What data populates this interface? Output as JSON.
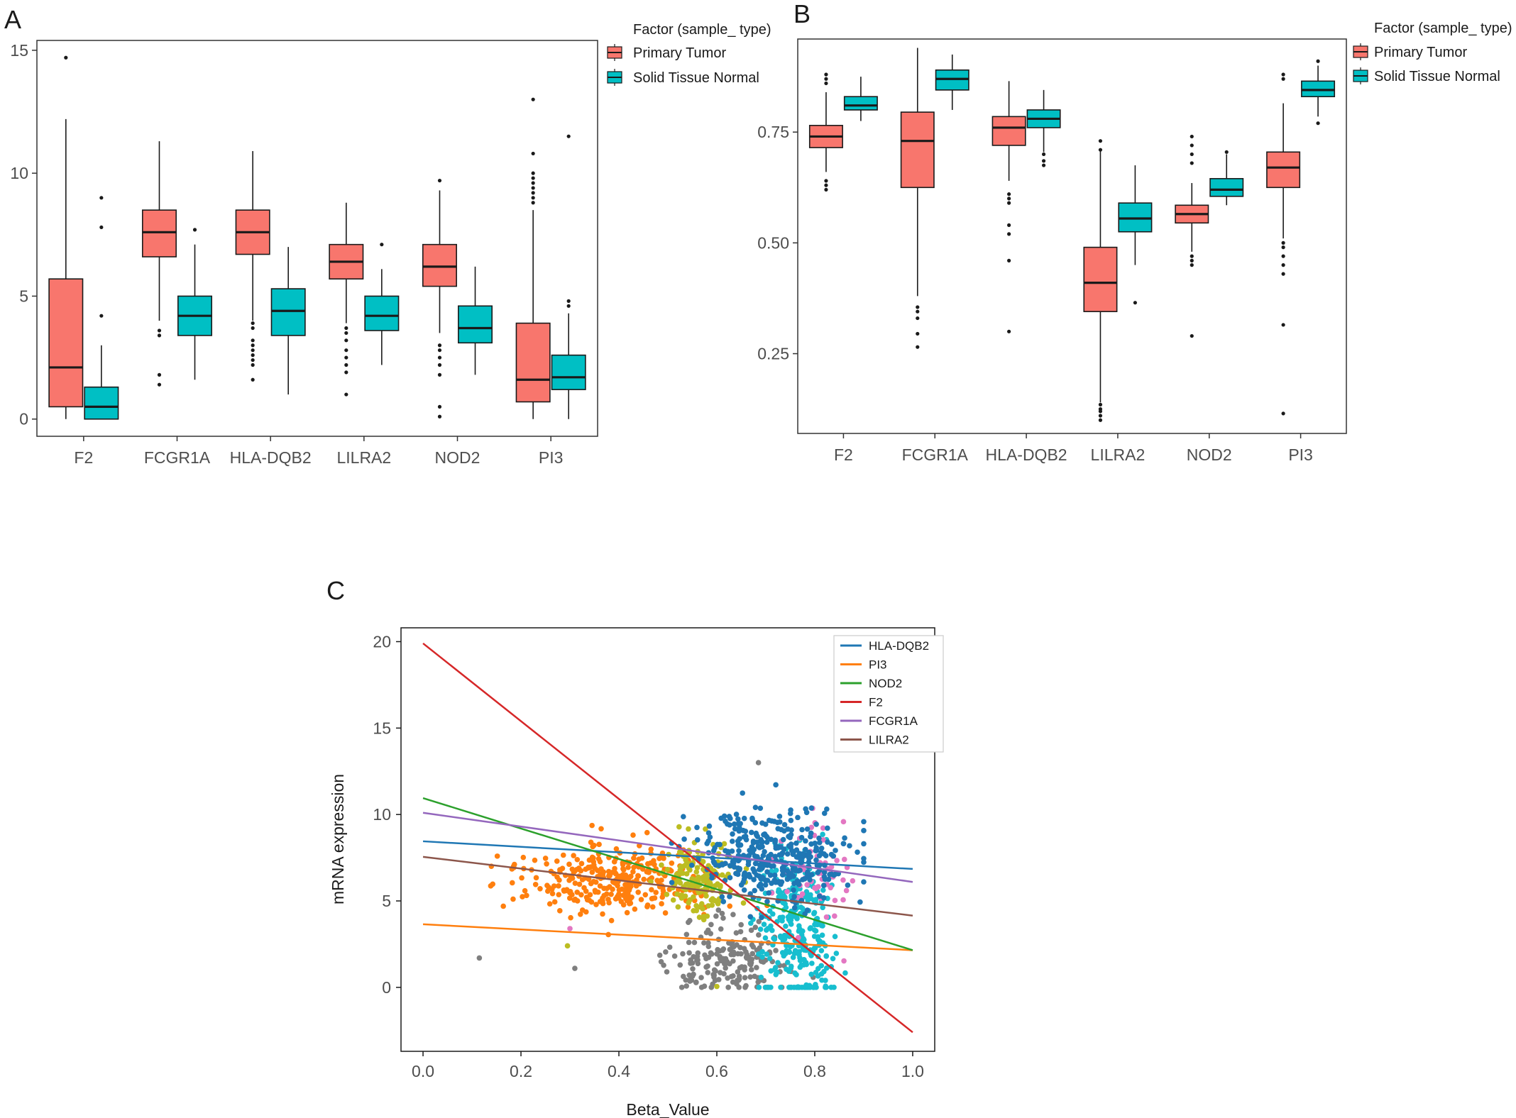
{
  "colors": {
    "primary_tumor": "#F8766D",
    "solid_tissue_normal": "#00BFC4",
    "box_stroke": "#1a1a1a",
    "panel_border": "#333333",
    "fit_lines": {
      "HLA-DQB2": "#1f77b4",
      "PI3": "#ff7f0e",
      "NOD2": "#2ca02c",
      "F2": "#d62728",
      "FCGR1A": "#9467bd",
      "LILRA2": "#8c564b"
    },
    "scatter_groups": [
      "#1f77b4",
      "#ff7f0e",
      "#bcbd22",
      "#7f7f7f",
      "#17becf",
      "#e377c2"
    ]
  },
  "panels": {
    "a": {
      "letter": "A"
    },
    "b": {
      "letter": "B"
    },
    "c": {
      "letter": "C"
    }
  },
  "legend_ab": {
    "title": "Factor (sample_ type)",
    "items": [
      "Primary Tumor",
      "Solid Tissue Normal"
    ]
  },
  "chart_data": [
    {
      "panel": "A",
      "type": "box",
      "categories": [
        "F2",
        "FCGR1A",
        "HLA-DQB2",
        "LILRA2",
        "NOD2",
        "PI3"
      ],
      "legend_title": "Factor (sample_ type)",
      "series": [
        {
          "name": "Primary Tumor",
          "boxes": [
            {
              "whisker_low": 0.0,
              "q1": 0.5,
              "median": 2.1,
              "q3": 5.7,
              "whisker_high": 12.2,
              "outliers": [
                14.7
              ]
            },
            {
              "whisker_low": 4.0,
              "q1": 6.6,
              "median": 7.6,
              "q3": 8.5,
              "whisker_high": 11.3,
              "outliers": [
                3.6,
                3.4,
                1.8,
                1.4
              ]
            },
            {
              "whisker_low": 4.0,
              "q1": 6.7,
              "median": 7.6,
              "q3": 8.5,
              "whisker_high": 10.9,
              "outliers": [
                3.9,
                3.7,
                3.2,
                3.0,
                2.8,
                2.6,
                2.4,
                2.2,
                1.6
              ]
            },
            {
              "whisker_low": 3.9,
              "q1": 5.7,
              "median": 6.4,
              "q3": 7.1,
              "whisker_high": 8.8,
              "outliers": [
                3.7,
                3.5,
                3.2,
                2.8,
                2.5,
                2.2,
                1.9,
                1.0
              ]
            },
            {
              "whisker_low": 3.5,
              "q1": 5.4,
              "median": 6.2,
              "q3": 7.1,
              "whisker_high": 9.3,
              "outliers": [
                9.7,
                3.0,
                2.8,
                2.5,
                2.2,
                1.8,
                0.5,
                0.1
              ]
            },
            {
              "whisker_low": 0.0,
              "q1": 0.7,
              "median": 1.6,
              "q3": 3.9,
              "whisker_high": 8.5,
              "outliers": [
                13.0,
                10.8,
                10.0,
                9.8,
                9.6,
                9.4,
                9.2,
                9.0,
                8.8
              ]
            }
          ]
        },
        {
          "name": "Solid Tissue Normal",
          "boxes": [
            {
              "whisker_low": 0.0,
              "q1": 0.0,
              "median": 0.5,
              "q3": 1.3,
              "whisker_high": 3.0,
              "outliers": [
                9.0,
                7.8,
                4.2
              ]
            },
            {
              "whisker_low": 1.6,
              "q1": 3.4,
              "median": 4.2,
              "q3": 5.0,
              "whisker_high": 7.1,
              "outliers": [
                7.7
              ]
            },
            {
              "whisker_low": 1.0,
              "q1": 3.4,
              "median": 4.4,
              "q3": 5.3,
              "whisker_high": 7.0,
              "outliers": []
            },
            {
              "whisker_low": 2.2,
              "q1": 3.6,
              "median": 4.2,
              "q3": 5.0,
              "whisker_high": 6.1,
              "outliers": [
                7.1
              ]
            },
            {
              "whisker_low": 1.8,
              "q1": 3.1,
              "median": 3.7,
              "q3": 4.6,
              "whisker_high": 6.2,
              "outliers": []
            },
            {
              "whisker_low": 0.0,
              "q1": 1.2,
              "median": 1.7,
              "q3": 2.6,
              "whisker_high": 4.3,
              "outliers": [
                11.5,
                4.8,
                4.6
              ]
            }
          ]
        }
      ],
      "ylim": [
        -0.7,
        15.4
      ],
      "yticks": [
        0,
        5,
        10,
        15
      ],
      "grid": false
    },
    {
      "panel": "B",
      "type": "box",
      "categories": [
        "F2",
        "FCGR1A",
        "HLA-DQB2",
        "LILRA2",
        "NOD2",
        "PI3"
      ],
      "legend_title": "Factor (sample_ type)",
      "series": [
        {
          "name": "Primary Tumor",
          "boxes": [
            {
              "whisker_low": 0.66,
              "q1": 0.715,
              "median": 0.74,
              "q3": 0.765,
              "whisker_high": 0.84,
              "outliers": [
                0.88,
                0.87,
                0.86,
                0.64,
                0.63,
                0.62
              ]
            },
            {
              "whisker_low": 0.38,
              "q1": 0.625,
              "median": 0.73,
              "q3": 0.795,
              "whisker_high": 0.94,
              "outliers": [
                0.355,
                0.345,
                0.33,
                0.295,
                0.265
              ]
            },
            {
              "whisker_low": 0.64,
              "q1": 0.72,
              "median": 0.76,
              "q3": 0.785,
              "whisker_high": 0.865,
              "outliers": [
                0.61,
                0.6,
                0.59,
                0.54,
                0.52,
                0.46,
                0.3
              ]
            },
            {
              "whisker_low": 0.14,
              "q1": 0.345,
              "median": 0.41,
              "q3": 0.49,
              "whisker_high": 0.71,
              "outliers": [
                0.73,
                0.71,
                0.135,
                0.125,
                0.12,
                0.11,
                0.1
              ]
            },
            {
              "whisker_low": 0.48,
              "q1": 0.545,
              "median": 0.565,
              "q3": 0.585,
              "whisker_high": 0.635,
              "outliers": [
                0.74,
                0.72,
                0.7,
                0.68,
                0.47,
                0.46,
                0.45,
                0.29
              ]
            },
            {
              "whisker_low": 0.51,
              "q1": 0.625,
              "median": 0.67,
              "q3": 0.705,
              "whisker_high": 0.815,
              "outliers": [
                0.88,
                0.87,
                0.5,
                0.49,
                0.47,
                0.45,
                0.43,
                0.315,
                0.115
              ]
            }
          ]
        },
        {
          "name": "Solid Tissue Normal",
          "boxes": [
            {
              "whisker_low": 0.775,
              "q1": 0.8,
              "median": 0.81,
              "q3": 0.83,
              "whisker_high": 0.875,
              "outliers": []
            },
            {
              "whisker_low": 0.8,
              "q1": 0.845,
              "median": 0.87,
              "q3": 0.89,
              "whisker_high": 0.925,
              "outliers": []
            },
            {
              "whisker_low": 0.705,
              "q1": 0.76,
              "median": 0.78,
              "q3": 0.8,
              "whisker_high": 0.845,
              "outliers": [
                0.7,
                0.685,
                0.675
              ]
            },
            {
              "whisker_low": 0.45,
              "q1": 0.525,
              "median": 0.555,
              "q3": 0.59,
              "whisker_high": 0.675,
              "outliers": [
                0.365
              ]
            },
            {
              "whisker_low": 0.585,
              "q1": 0.605,
              "median": 0.62,
              "q3": 0.645,
              "whisker_high": 0.7,
              "outliers": [
                0.705
              ]
            },
            {
              "whisker_low": 0.785,
              "q1": 0.83,
              "median": 0.845,
              "q3": 0.865,
              "whisker_high": 0.9,
              "outliers": [
                0.91,
                0.77
              ]
            }
          ]
        }
      ],
      "ylim": [
        0.07,
        0.96
      ],
      "yticks": [
        0.25,
        0.5,
        0.75
      ],
      "ytick_labels": [
        "0.25",
        "0.50",
        "0.75"
      ],
      "grid": false
    },
    {
      "panel": "C",
      "type": "scatter",
      "xlabel": "Beta_Value",
      "ylabel": "mRNA expression",
      "xlim": [
        -0.045,
        1.045
      ],
      "ylim": [
        -3.7,
        20.8
      ],
      "xticks": [
        0.0,
        0.2,
        0.4,
        0.6,
        0.8,
        1.0
      ],
      "xtick_labels": [
        "0.0",
        "0.2",
        "0.4",
        "0.6",
        "0.8",
        "1.0"
      ],
      "yticks": [
        0,
        5,
        10,
        15,
        20
      ],
      "legend_position": "top-right",
      "fit_lines": [
        {
          "name": "HLA-DQB2",
          "x": [
            0.0,
            1.0
          ],
          "y": [
            8.45,
            6.85
          ]
        },
        {
          "name": "PI3",
          "x": [
            0.0,
            1.0
          ],
          "y": [
            3.65,
            2.15
          ]
        },
        {
          "name": "NOD2",
          "x": [
            0.0,
            1.0
          ],
          "y": [
            10.95,
            2.15
          ]
        },
        {
          "name": "F2",
          "x": [
            0.0,
            1.0
          ],
          "y": [
            19.9,
            -2.6
          ]
        },
        {
          "name": "FCGR1A",
          "x": [
            0.0,
            1.0
          ],
          "y": [
            10.1,
            6.1
          ]
        },
        {
          "name": "LILRA2",
          "x": [
            0.0,
            1.0
          ],
          "y": [
            7.55,
            4.15
          ]
        }
      ],
      "point_clouds": [
        {
          "group": "HLA-DQB2",
          "x_center": 0.72,
          "x_spread": 0.1,
          "y_center": 7.6,
          "y_spread": 1.6,
          "n": 360
        },
        {
          "group": "PI3",
          "x_center": 0.4,
          "x_spread": 0.12,
          "y_center": 6.2,
          "y_spread": 1.3,
          "n": 320
        },
        {
          "group": "NOD2",
          "x_center": 0.57,
          "x_spread": 0.05,
          "y_center": 6.3,
          "y_spread": 1.4,
          "n": 160
        },
        {
          "group": "F2",
          "x_center": 0.62,
          "x_spread": 0.08,
          "y_center": 1.6,
          "y_spread": 1.3,
          "n": 180
        },
        {
          "group": "LILRA2",
          "x_center": 0.76,
          "x_spread": 0.05,
          "y_center": 3.5,
          "y_spread": 2.6,
          "n": 300
        },
        {
          "group": "FCGR1A",
          "x_center": 0.8,
          "x_spread": 0.05,
          "y_center": 6.6,
          "y_spread": 2.0,
          "n": 60
        }
      ],
      "extra_points": [
        {
          "x": 0.115,
          "y": 1.7,
          "group": "F2"
        },
        {
          "x": 0.31,
          "y": 1.1,
          "group": "F2"
        },
        {
          "x": 0.685,
          "y": 13.0,
          "group": "F2"
        },
        {
          "x": 0.295,
          "y": 2.4,
          "group": "NOD2"
        },
        {
          "x": 0.6,
          "y": 0.05,
          "group": "NOD2"
        },
        {
          "x": 0.3,
          "y": 3.4,
          "group": "FCGR1A"
        }
      ]
    }
  ]
}
